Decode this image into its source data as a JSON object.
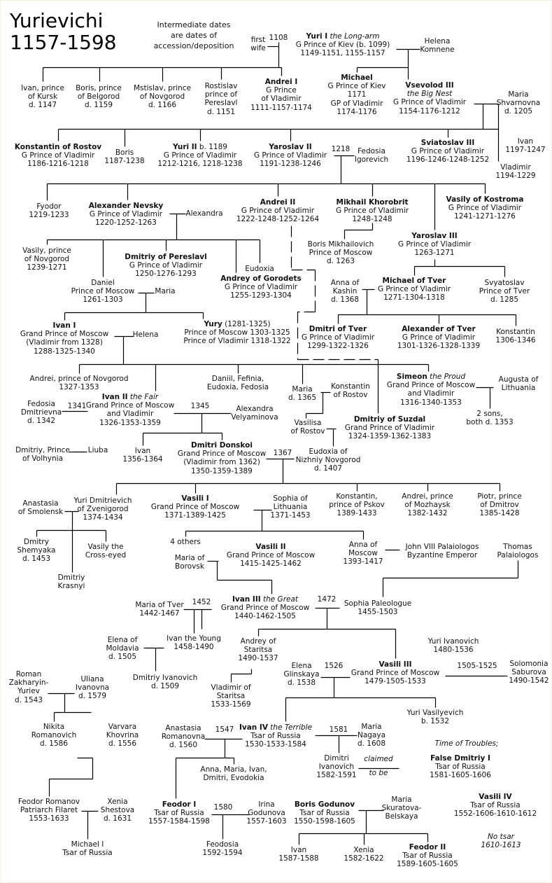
{
  "title": {
    "line1": "Yurievichi",
    "line2": "1157-1598"
  },
  "note": [
    "Intermediate dates",
    "are dates of",
    "accession/deposition"
  ],
  "people": [
    {
      "id": "firstwife",
      "lines": [
        "first",
        "wife"
      ]
    },
    {
      "id": "yuri1",
      "name": "Yuri I",
      "epithet": " the Long-arm",
      "lines": [
        "G Prince of Kiev (b. 1099)",
        "1149-1151, 1155-1157"
      ]
    },
    {
      "id": "helena_k",
      "lines": [
        "Helena",
        "Komnene"
      ]
    },
    {
      "id": "ivan_kursk",
      "lines": [
        "Ivan, prince",
        "of Kursk",
        "d. 1147"
      ]
    },
    {
      "id": "boris_belg",
      "lines": [
        "Boris, prince",
        "of Belgorod",
        "d. 1159"
      ]
    },
    {
      "id": "mstislav",
      "lines": [
        "Mstislav, prince",
        "of Novgorod",
        "d. 1166"
      ]
    },
    {
      "id": "rostislav",
      "lines": [
        "Rostislav",
        "prince of",
        "Pereslavl",
        "d. 1151"
      ]
    },
    {
      "id": "andrei1",
      "name": "Andrei I",
      "lines": [
        "G Prince",
        "of Vladimir",
        "1111-1157-1174"
      ]
    },
    {
      "id": "michael",
      "name": "Michael",
      "lines": [
        "G Prince of Kiev",
        "1171",
        "GP of Vladimir",
        "1174-1176"
      ]
    },
    {
      "id": "vsevolod3",
      "name": "Vsevolod III",
      "lines": [
        "the Big Nest",
        "G Prince of Vladimir",
        "1154-1176-1212"
      ],
      "italic_first_line": true
    },
    {
      "id": "maria_sh",
      "lines": [
        "Maria",
        "Shvarnovna",
        "d. 1205"
      ]
    },
    {
      "id": "konst_rostov",
      "name": "Konstantin of Rostov",
      "lines": [
        "G Prince of Vladimir",
        "1186-1216-1218"
      ]
    },
    {
      "id": "boris2",
      "lines": [
        "Boris",
        "1187-1238"
      ]
    },
    {
      "id": "yuri2",
      "name": "Yuri II",
      "after": " b. 1189",
      "lines": [
        "G Prince of Vladimir",
        "1212-1216, 1218-1238"
      ]
    },
    {
      "id": "yaroslav2",
      "name": "Yaroslav II",
      "lines": [
        "G Prince of Vladimir",
        "1191-1238-1246"
      ]
    },
    {
      "id": "fedosia_ig",
      "lines": [
        "Fedosia",
        "Igorevich"
      ]
    },
    {
      "id": "sviatoslav3",
      "name": "Sviatoslav III",
      "lines": [
        "G Prince of Vladimir",
        "1196-1246-1248-1252"
      ]
    },
    {
      "id": "ivan1197",
      "lines": [
        "Ivan",
        "1197-1247"
      ]
    },
    {
      "id": "vladimir1194",
      "lines": [
        "Vladimir",
        "1194-1229"
      ]
    },
    {
      "id": "fyodor",
      "lines": [
        "Fyodor",
        "1219-1233"
      ]
    },
    {
      "id": "alex_nevsky",
      "name": "Alexander Nevsky",
      "lines": [
        "G Prince of Vladimir",
        "1220-1252-1263"
      ]
    },
    {
      "id": "alexandra",
      "lines": [
        "Alexandra"
      ]
    },
    {
      "id": "andrei2",
      "name": "Andrei II",
      "lines": [
        "G Prince of Vladimir",
        "1222-1248-1252-1264"
      ]
    },
    {
      "id": "mikhail_kh",
      "name": "Mikhail Khorobrit",
      "lines": [
        "G Prince of Vladimir",
        "1248-1248"
      ]
    },
    {
      "id": "vasily_kost",
      "name": "Vasily of Kostroma",
      "lines": [
        "G Prince of Vladimir",
        "1241-1271-1276"
      ]
    },
    {
      "id": "vasily_nov",
      "lines": [
        "Vasily, prince",
        "of Novgorod",
        "1239-1271"
      ]
    },
    {
      "id": "dmitriy_per",
      "name": "Dmitriy of Pereslavl",
      "lines": [
        "G Prince of Vladimir",
        "1250-1276-1293"
      ]
    },
    {
      "id": "eudoxia1",
      "lines": [
        "Eudoxia"
      ]
    },
    {
      "id": "boris_mikh",
      "lines": [
        "Boris Mikhailovich",
        "Prince of Moscow",
        "d. 1263"
      ]
    },
    {
      "id": "yaroslav3",
      "name": "Yaroslav III",
      "lines": [
        "G Prince of Vladimir",
        "1263-1271"
      ]
    },
    {
      "id": "daniel",
      "lines": [
        "Daniel",
        "Prince of Moscow",
        "1261-1303"
      ]
    },
    {
      "id": "maria1",
      "lines": [
        "Maria"
      ]
    },
    {
      "id": "andrey_gor",
      "name": "Andrey of Gorodets",
      "lines": [
        "G Prince of Vladimir",
        "1255-1293-1304"
      ]
    },
    {
      "id": "anna_kashin",
      "lines": [
        "Anna of",
        "Kashin",
        "d. 1368"
      ]
    },
    {
      "id": "michael_tver",
      "name": "Michael of Tver",
      "lines": [
        "G Prince of Vladimir",
        "1271-1304-1318"
      ]
    },
    {
      "id": "svyatoslav",
      "lines": [
        "Svyatoslav",
        "Prince of Tver",
        "d. 1285"
      ]
    },
    {
      "id": "ivan1",
      "name": "Ivan I",
      "lines": [
        "Grand Prince of Moscow",
        "(Vladimir from 1328)",
        "1288-1325-1340"
      ]
    },
    {
      "id": "helena2",
      "lines": [
        "Helena"
      ]
    },
    {
      "id": "yury",
      "name": "Yury",
      "after": " (1281-1325)",
      "lines": [
        "Prince of Moscow 1303-1325",
        "Prince of Vladimir 1318-1322"
      ]
    },
    {
      "id": "dmitri_tver",
      "name": "Dmitri of Tver",
      "lines": [
        "G Prince of Vladimir",
        "1299-1322-1326"
      ]
    },
    {
      "id": "alex_tver",
      "name": "Alexander of Tver",
      "lines": [
        "G Prince of Vladimir",
        "1301-1326-1328-1339"
      ]
    },
    {
      "id": "konst1306",
      "lines": [
        "Konstantin",
        "1306-1346"
      ]
    },
    {
      "id": "andrei_nov",
      "lines": [
        "Andrei, prince of Novgorod",
        "1327-1353"
      ]
    },
    {
      "id": "daniil",
      "lines": [
        "Daniil, Fefinia,",
        "Eudoxia, Fedosia"
      ]
    },
    {
      "id": "maria1365",
      "lines": [
        "Maria",
        "d. 1365"
      ]
    },
    {
      "id": "konst_rost2",
      "lines": [
        "Konstantin",
        "of Rostov"
      ]
    },
    {
      "id": "simeon",
      "name": "Simeon",
      "epithet": " the Proud",
      "lines": [
        "Grand Prince of Moscow",
        "and Vladimir",
        "1316-1340-1353"
      ]
    },
    {
      "id": "augusta",
      "lines": [
        "Augusta of",
        "Lithuania"
      ]
    },
    {
      "id": "ivan2",
      "name": "Ivan II",
      "epithet": " the Fair",
      "lines": [
        "Grand Prince of Moscow",
        "and Vladimir",
        "1326-1353-1359"
      ]
    },
    {
      "id": "fedosia_d",
      "lines": [
        "Fedosia",
        "Dmitrievna",
        "d. 1342"
      ]
    },
    {
      "id": "alexandra_v",
      "lines": [
        "Alexandra",
        "Velyaminova"
      ]
    },
    {
      "id": "two_sons",
      "lines": [
        "2 sons,",
        "both d. 1353"
      ]
    },
    {
      "id": "vasilisa",
      "lines": [
        "Vasilisa",
        "of Rostov"
      ]
    },
    {
      "id": "dmitriy_suz",
      "name": "Dmitriy of Suzdal",
      "lines": [
        "Grand Prince of Vladimir",
        "1324-1359-1362-1383"
      ]
    },
    {
      "id": "eudoxia_nn",
      "lines": [
        "Eudoxia of",
        "Nizhniy Novgorod",
        "d. 1407"
      ]
    },
    {
      "id": "dmitriy_volh",
      "lines": [
        "Dmitriy, Prince",
        "of Volhynia"
      ]
    },
    {
      "id": "liuba",
      "lines": [
        "Liuba"
      ]
    },
    {
      "id": "ivan1356",
      "lines": [
        "Ivan",
        "1356-1364"
      ]
    },
    {
      "id": "donskoi",
      "name": "Dmitri Donskoi",
      "lines": [
        "Grand Prince of Moscow",
        "(Vladimir from 1362)",
        "1350-1359-1389"
      ]
    },
    {
      "id": "anastasia_sm",
      "lines": [
        "Anastasia",
        "of Smolensk"
      ]
    },
    {
      "id": "yuri_zven",
      "lines": [
        "Yuri Dmitrievich",
        "of Zvenigorod",
        "1374-1434"
      ]
    },
    {
      "id": "vasili1",
      "name": "Vasili I",
      "lines": [
        "Grand Prince of Moscow",
        "1371-1389-1425"
      ]
    },
    {
      "id": "sophia_lith",
      "lines": [
        "Sophia of",
        "Lithuania",
        "1371-1453"
      ]
    },
    {
      "id": "konst_pskov",
      "lines": [
        "Konstantin,",
        "prince of Pskov",
        "1389-1433"
      ]
    },
    {
      "id": "andrei_moz",
      "lines": [
        "Andrei, prince",
        "of Mozhaysk",
        "1382-1432"
      ]
    },
    {
      "id": "piotr",
      "lines": [
        "Piotr, prince",
        "of Dmitrov",
        "1385-1428"
      ]
    },
    {
      "id": "shemyaka",
      "lines": [
        "Dmitry",
        "Shemyaka",
        "d. 1453"
      ]
    },
    {
      "id": "vasily_ce",
      "lines": [
        "Vasily the",
        "Cross-eyed"
      ]
    },
    {
      "id": "four_others",
      "lines": [
        "4 others"
      ]
    },
    {
      "id": "vasili2",
      "name": "Vasili II",
      "lines": [
        "Grand Prince of Moscow",
        "1415-1425-1462"
      ]
    },
    {
      "id": "anna_moscow",
      "lines": [
        "Anna of",
        "Moscow",
        "1393-1417"
      ]
    },
    {
      "id": "john8",
      "lines": [
        "John VIII Palaiologos",
        "Byzantine Emperor"
      ]
    },
    {
      "id": "thomas",
      "lines": [
        "Thomas",
        "Palaiologos"
      ]
    },
    {
      "id": "maria_bor",
      "lines": [
        "Maria of",
        "Borovsk"
      ]
    },
    {
      "id": "krasnyi",
      "lines": [
        "Dmitriy",
        "Krasnyi"
      ]
    },
    {
      "id": "maria_tver",
      "lines": [
        "Maria of Tver",
        "1442-1467"
      ]
    },
    {
      "id": "ivan3",
      "name": "Ivan III",
      "epithet": " the Great",
      "lines": [
        "Grand Prince of Moscow",
        "1440-1462-1505"
      ]
    },
    {
      "id": "sophia_pal",
      "lines": [
        "Sophia Paleologue",
        "1455-1503"
      ]
    },
    {
      "id": "elena_mold",
      "lines": [
        "Elena of",
        "Moldavia",
        "d. 1505"
      ]
    },
    {
      "id": "ivan_young",
      "lines": [
        "Ivan the Young",
        "1458-1490"
      ]
    },
    {
      "id": "andrey_star",
      "lines": [
        "Andrey of",
        "Staritsa",
        "1490-1537"
      ]
    },
    {
      "id": "yuri_ivan",
      "lines": [
        "Yuri Ivanovich",
        "1480-1536"
      ]
    },
    {
      "id": "dmitriy_ivan",
      "lines": [
        "Dmitriy Ivanovich",
        "d. 1509"
      ]
    },
    {
      "id": "roman",
      "lines": [
        "Roman",
        "Zakharyin-",
        "Yuriev",
        "d. 1543"
      ]
    },
    {
      "id": "uliana",
      "lines": [
        "Uliana",
        "Ivanovna",
        "d. 1579"
      ]
    },
    {
      "id": "elena_gl",
      "lines": [
        "Elena",
        "Glinskaya",
        "d. 1538"
      ]
    },
    {
      "id": "vasili3",
      "name": "Vasili III",
      "lines": [
        "Grand Prince of Moscow",
        "1479-1505-1533"
      ]
    },
    {
      "id": "solomonia",
      "lines": [
        "Solomonia",
        "Saburova",
        "1490-1542"
      ]
    },
    {
      "id": "vladimir_star",
      "lines": [
        "Vladimir of",
        "Staritsa",
        "1533-1569"
      ]
    },
    {
      "id": "yuri_vas",
      "lines": [
        "Yuri Vasilyevich",
        "b. 1532"
      ]
    },
    {
      "id": "anastasia_rom",
      "lines": [
        "Anastasia",
        "Romanovna",
        "d. 1560"
      ]
    },
    {
      "id": "ivan4",
      "name": "Ivan IV",
      "epithet": " the Terrible",
      "lines": [
        "Tsar of Russia",
        "1530-1533-1584"
      ]
    },
    {
      "id": "maria_nagaya",
      "lines": [
        "Maria",
        "Nagaya",
        "d. 1608"
      ]
    },
    {
      "id": "nikita",
      "lines": [
        "Nikita",
        "Romanovich",
        "d. 1586"
      ]
    },
    {
      "id": "varvara",
      "lines": [
        "Varvara",
        "Khovrina",
        "d. 1556"
      ]
    },
    {
      "id": "dimitri_ivan",
      "lines": [
        "Dimitri",
        "Ivanovich",
        "1582-1591"
      ]
    },
    {
      "id": "false_dmitriy",
      "name": "False Dmitriy I",
      "lines": [
        "Tsar of Russia",
        "1581-1605-1606"
      ]
    },
    {
      "id": "anna_maria",
      "lines": [
        "Anna, Maria, Ivan,",
        "Dmitri, Evodokia"
      ]
    },
    {
      "id": "feodor_rom",
      "lines": [
        "Feodor Romanov",
        "Patriarch Filaret",
        "1553-1633"
      ]
    },
    {
      "id": "xenia_sh",
      "lines": [
        "Xenia",
        "Shestova",
        "d. 1631"
      ]
    },
    {
      "id": "feodor1",
      "name": "Feodor I",
      "lines": [
        "Tsar of Russia",
        "1557-1584-1598"
      ]
    },
    {
      "id": "irina",
      "lines": [
        "Irina",
        "Godunova",
        "1557-1603"
      ]
    },
    {
      "id": "boris_god",
      "name": "Boris Godunov",
      "lines": [
        "Tsar of Russia",
        "1550-1598-1605"
      ]
    },
    {
      "id": "maria_sk",
      "lines": [
        "Maria",
        "Skuratova-",
        "Belskaya"
      ]
    },
    {
      "id": "vasili4",
      "name": "Vasili IV",
      "lines": [
        "Tsar of Russia",
        "1552-1606-1610-1612"
      ]
    },
    {
      "id": "michael1",
      "lines": [
        "Michael I",
        "Tsar of Russia"
      ]
    },
    {
      "id": "feodosia",
      "lines": [
        "Feodosia",
        "1592-1594"
      ]
    },
    {
      "id": "ivan1587",
      "lines": [
        "Ivan",
        "1587-1588"
      ]
    },
    {
      "id": "xenia",
      "lines": [
        "Xenia",
        "1582-1622"
      ]
    },
    {
      "id": "feodor2",
      "name": "Feodor II",
      "lines": [
        "Tsar of Russia",
        "1589-1605-1605"
      ]
    }
  ],
  "marriage_years": [
    {
      "id": "y1108",
      "text": "1108"
    },
    {
      "id": "y1218",
      "text": "1218"
    },
    {
      "id": "y1341",
      "text": "1341"
    },
    {
      "id": "y1345",
      "text": "1345"
    },
    {
      "id": "y1367",
      "text": "1367"
    },
    {
      "id": "y1452",
      "text": "1452"
    },
    {
      "id": "y1472",
      "text": "1472"
    },
    {
      "id": "y1526",
      "text": "1526"
    },
    {
      "id": "y1505",
      "text": "1505-1525"
    },
    {
      "id": "y1547",
      "text": "1547"
    },
    {
      "id": "y1581",
      "text": "1581"
    },
    {
      "id": "y1580",
      "text": "1580"
    }
  ],
  "italic_notes": [
    {
      "id": "troubles",
      "lines": [
        "Time of Troubles;"
      ]
    },
    {
      "id": "claimed",
      "lines": [
        "claimed"
      ]
    },
    {
      "id": "tobe",
      "lines": [
        "to be"
      ]
    },
    {
      "id": "notsar",
      "lines": [
        "No tsar",
        "1610-1613"
      ]
    }
  ],
  "colors": {
    "background": "#ffffff",
    "lines": "#000000",
    "text": "#111111"
  }
}
